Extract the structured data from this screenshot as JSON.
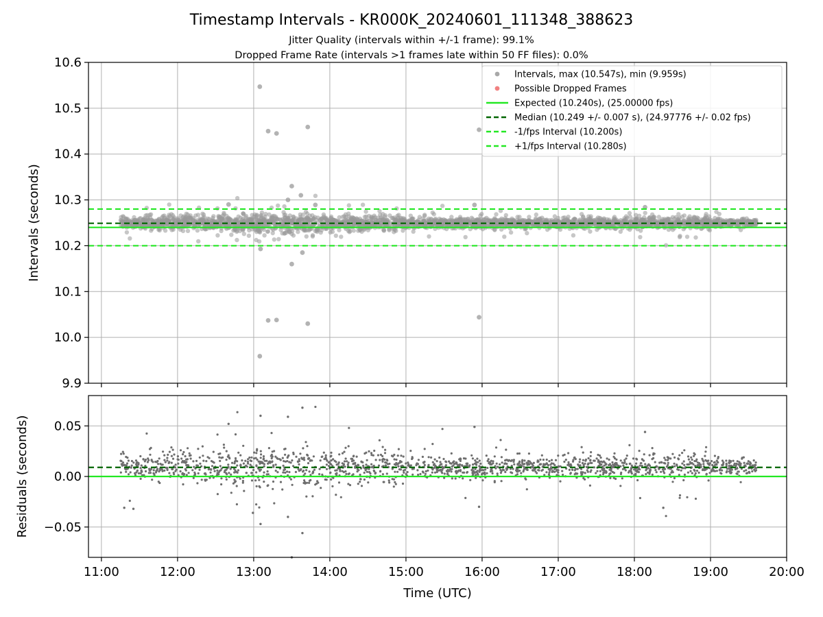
{
  "chart_data": {
    "title": "Timestamp Intervals - KR000K_20240601_111348_388623",
    "subtitle_1": "Jitter Quality (intervals within +/-1 frame): 99.1%",
    "subtitle_2": "Dropped Frame Rate (intervals >1 frames late within 50 FF files): 0.0%",
    "x_axis": {
      "label": "Time (UTC)",
      "tick_hours": [
        11,
        12,
        13,
        14,
        15,
        16,
        17,
        18,
        19,
        20
      ],
      "tick_labels": [
        "11:00",
        "12:00",
        "13:00",
        "14:00",
        "15:00",
        "16:00",
        "17:00",
        "18:00",
        "19:00",
        "20:00"
      ],
      "range_hours": [
        10.83,
        20.0
      ]
    },
    "top_panel": {
      "type": "scatter",
      "ylabel": "Intervals (seconds)",
      "ylim": [
        9.9,
        10.6
      ],
      "yticks": [
        9.9,
        10.0,
        10.1,
        10.2,
        10.3,
        10.4,
        10.5,
        10.6
      ],
      "ytick_labels": [
        "9.9",
        "10.0",
        "10.1",
        "10.2",
        "10.3",
        "10.4",
        "10.5",
        "10.6"
      ],
      "grid": true,
      "legend_position": "top-right",
      "expected": 10.24,
      "median": 10.249,
      "minus_one_fps": 10.2,
      "plus_one_fps": 10.28,
      "legend": [
        {
          "label": "Intervals, max (10.547s), min (9.959s)",
          "kind": "dot",
          "color": "#999999"
        },
        {
          "label": "Possible Dropped Frames",
          "kind": "dot",
          "color": "#ef6b6b"
        },
        {
          "label": "Expected (10.240s), (25.00000 fps)",
          "kind": "solid",
          "color": "#22e822"
        },
        {
          "label": "Median (10.249 +/- 0.007 s), (24.97776 +/- 0.02 fps)",
          "kind": "dashed",
          "color": "#006400"
        },
        {
          "label": "-1/fps Interval (10.200s)",
          "kind": "dashed",
          "color": "#22e822"
        },
        {
          "label": "+1/fps Interval (10.280s)",
          "kind": "dashed",
          "color": "#22e822"
        }
      ],
      "outliers": [
        {
          "x": 13.08,
          "y": 10.547
        },
        {
          "x": 13.19,
          "y": 10.45
        },
        {
          "x": 13.3,
          "y": 10.445
        },
        {
          "x": 13.71,
          "y": 10.459
        },
        {
          "x": 15.96,
          "y": 10.453
        },
        {
          "x": 13.08,
          "y": 9.959
        },
        {
          "x": 13.19,
          "y": 10.037
        },
        {
          "x": 13.3,
          "y": 10.038
        },
        {
          "x": 13.71,
          "y": 10.03
        },
        {
          "x": 15.96,
          "y": 10.044
        },
        {
          "x": 13.5,
          "y": 10.33
        },
        {
          "x": 13.62,
          "y": 10.31
        },
        {
          "x": 13.45,
          "y": 10.3
        },
        {
          "x": 13.5,
          "y": 10.16
        },
        {
          "x": 13.64,
          "y": 10.185
        },
        {
          "x": 13.09,
          "y": 10.193
        },
        {
          "x": 12.67,
          "y": 10.29
        },
        {
          "x": 13.81,
          "y": 10.289
        },
        {
          "x": 15.9,
          "y": 10.289
        },
        {
          "x": 18.14,
          "y": 10.284
        }
      ]
    },
    "bottom_panel": {
      "type": "scatter",
      "ylabel": "Residuals (seconds)",
      "ylim": [
        -0.08,
        0.08
      ],
      "yticks": [
        -0.05,
        0.0,
        0.05
      ],
      "ytick_labels": [
        "−0.05",
        "0.00",
        "0.05"
      ],
      "grid": true,
      "expected_residual": 0.0,
      "median_residual": 0.009,
      "outliers": [
        {
          "x": 13.09,
          "y": 0.06
        },
        {
          "x": 13.45,
          "y": 0.059
        },
        {
          "x": 13.64,
          "y": 0.068
        },
        {
          "x": 12.67,
          "y": 0.052
        },
        {
          "x": 15.9,
          "y": 0.049
        },
        {
          "x": 18.14,
          "y": 0.044
        },
        {
          "x": 13.09,
          "y": -0.047
        },
        {
          "x": 13.64,
          "y": -0.056
        },
        {
          "x": 13.5,
          "y": -0.08
        },
        {
          "x": 12.99,
          "y": -0.036
        },
        {
          "x": 13.45,
          "y": -0.04
        },
        {
          "x": 11.3,
          "y": -0.031
        },
        {
          "x": 11.42,
          "y": -0.032
        },
        {
          "x": 18.38,
          "y": -0.031
        },
        {
          "x": 15.96,
          "y": -0.03
        }
      ]
    },
    "density_segments": [
      {
        "x0": 11.25,
        "x1": 12.0,
        "spread": 0.012
      },
      {
        "x0": 12.0,
        "x1": 13.0,
        "spread": 0.016
      },
      {
        "x0": 13.0,
        "x1": 14.0,
        "spread": 0.02
      },
      {
        "x0": 14.0,
        "x1": 15.0,
        "spread": 0.014
      },
      {
        "x0": 15.0,
        "x1": 17.0,
        "spread": 0.01
      },
      {
        "x0": 17.0,
        "x1": 18.0,
        "spread": 0.011
      },
      {
        "x0": 18.0,
        "x1": 19.0,
        "spread": 0.012
      },
      {
        "x0": 19.0,
        "x1": 19.6,
        "spread": 0.007
      }
    ],
    "point_count": 2900,
    "colors": {
      "points": "#999999",
      "residual_points": "#6e6e6e",
      "expected": "#22e822",
      "median": "#006400",
      "grid": "#b0b0b0"
    }
  }
}
